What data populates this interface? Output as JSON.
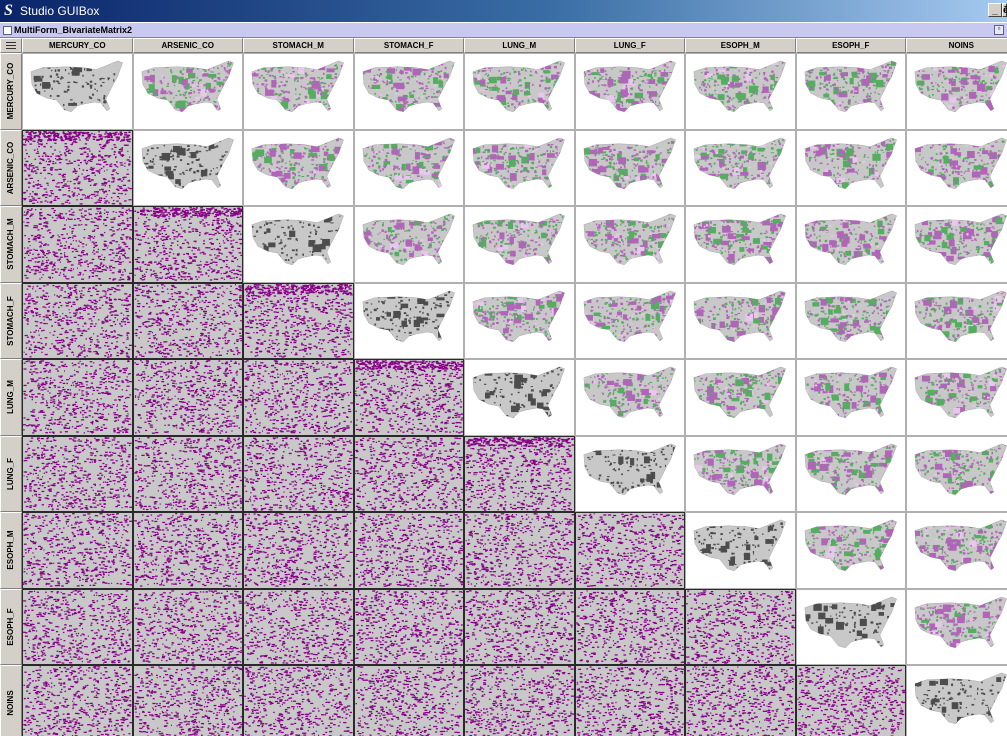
{
  "window": {
    "title": "Studio GUIBox",
    "minimize_label": "_",
    "restore_label": "ē"
  },
  "frame": {
    "title": "MultiForm_BivariateMatrix2"
  },
  "matrix": {
    "variables": [
      "MERCURY_CO",
      "ARSENIC_CO",
      "STOMACH_M",
      "STOMACH_F",
      "LUNG_M",
      "LUNG_F",
      "ESOPH_M",
      "ESOPH_F",
      "NOINS"
    ],
    "diagonal_view": "univariate-map",
    "upper_view": "bivariate-map",
    "lower_view": "scatterplot",
    "colors": {
      "univariate_high": "#4d4d4d",
      "univariate_low": "#c8c8c8",
      "bivariate_purple": "#b065b8",
      "bivariate_green": "#55ad60",
      "scatter_point": "#880088",
      "scatter_bg": "#c8c8c8"
    }
  }
}
